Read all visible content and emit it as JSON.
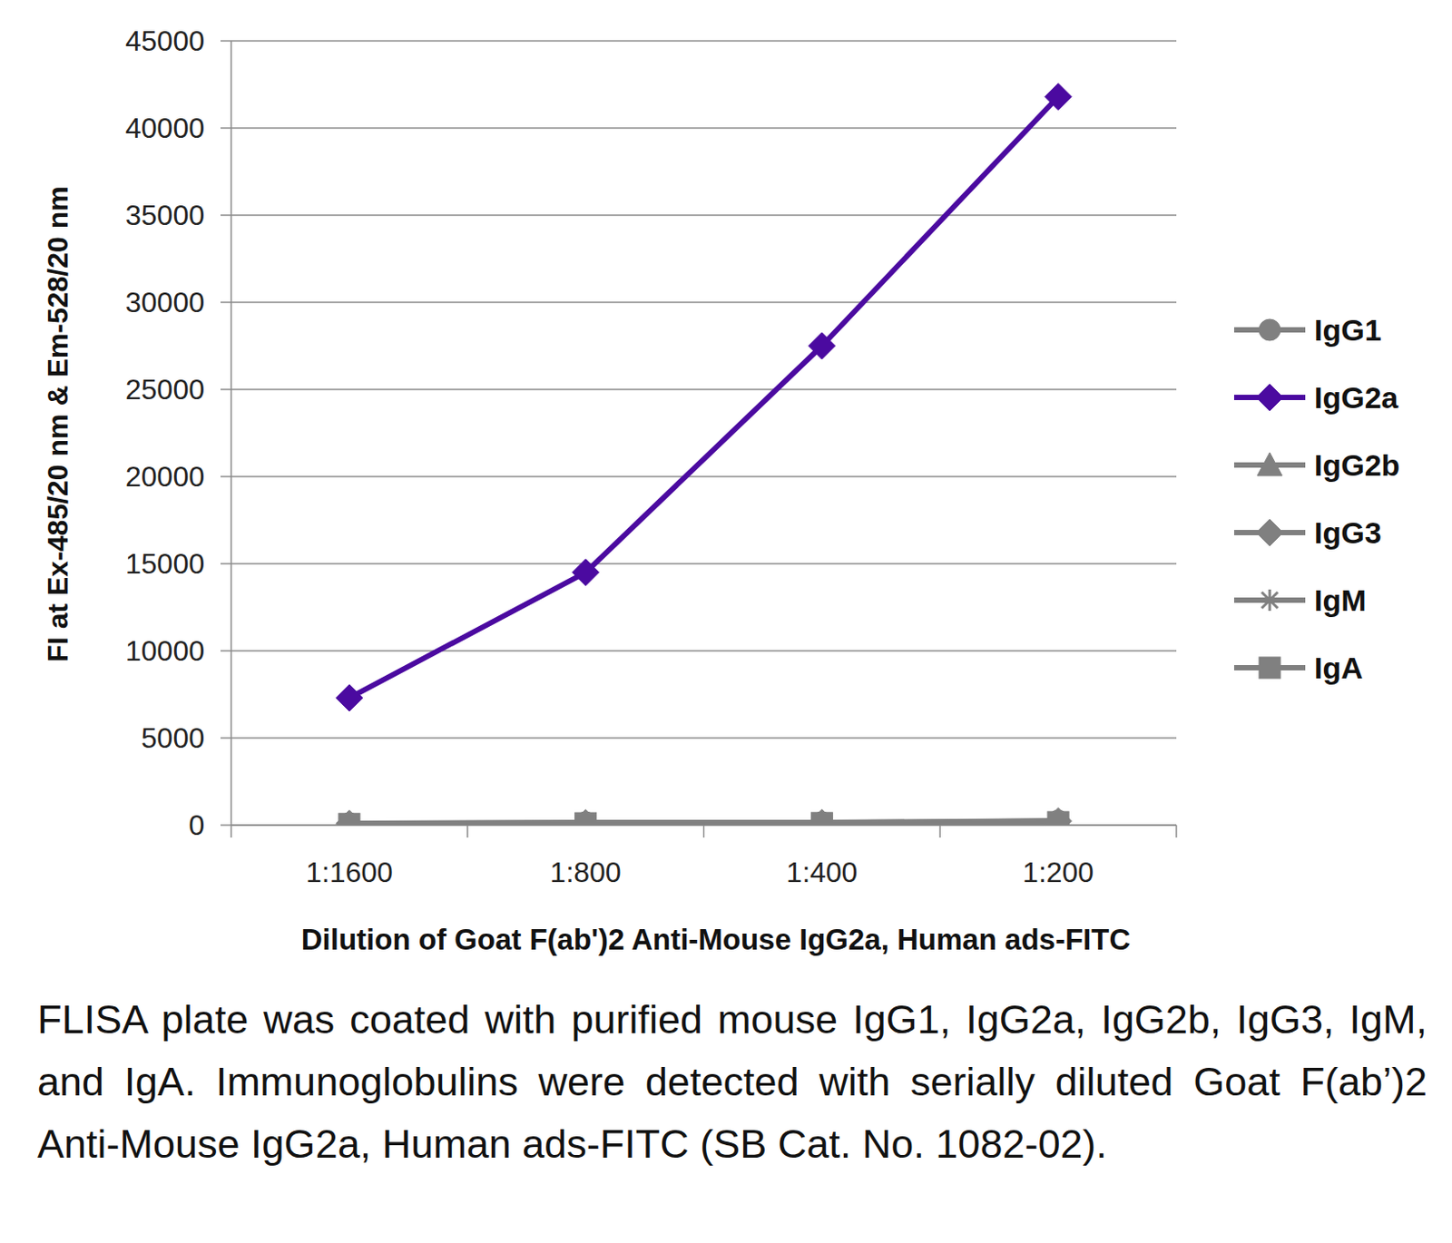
{
  "chart_data": {
    "type": "line",
    "x_label": "Dilution of Goat F(ab')2 Anti-Mouse IgG2a, Human ads-FITC",
    "y_label": "FI at Ex-485/20 nm & Em-528/20 nm",
    "caption": "FLISA plate was coated with purified mouse IgG1, IgG2a, IgG2b, IgG3, IgM, and IgA. Immunoglobulins were detected with serially diluted Goat F(ab’)2 Anti-Mouse IgG2a, Human ads-FITC (SB Cat. No. 1082-02).",
    "categories": [
      "1:1600",
      "1:800",
      "1:400",
      "1:200"
    ],
    "series": [
      {
        "name": "IgG1",
        "color": "#808080",
        "marker": "circle",
        "values": [
          100,
          150,
          150,
          250
        ]
      },
      {
        "name": "IgG2a",
        "color": "#4b0aa0",
        "marker": "diamond",
        "values": [
          7300,
          14500,
          27500,
          41800
        ]
      },
      {
        "name": "IgG2b",
        "color": "#808080",
        "marker": "triangle",
        "values": [
          80,
          120,
          130,
          200
        ]
      },
      {
        "name": "IgG3",
        "color": "#808080",
        "marker": "diamond",
        "values": [
          90,
          130,
          140,
          230
        ]
      },
      {
        "name": "IgM",
        "color": "#808080",
        "marker": "asterisk",
        "values": [
          70,
          110,
          120,
          180
        ]
      },
      {
        "name": "IgA",
        "color": "#808080",
        "marker": "square",
        "values": [
          60,
          100,
          110,
          160
        ]
      }
    ],
    "ylim": [
      0,
      45000
    ],
    "yticks": [
      0,
      5000,
      10000,
      15000,
      20000,
      25000,
      30000,
      35000,
      40000,
      45000
    ],
    "grid": true,
    "legend": "right"
  }
}
